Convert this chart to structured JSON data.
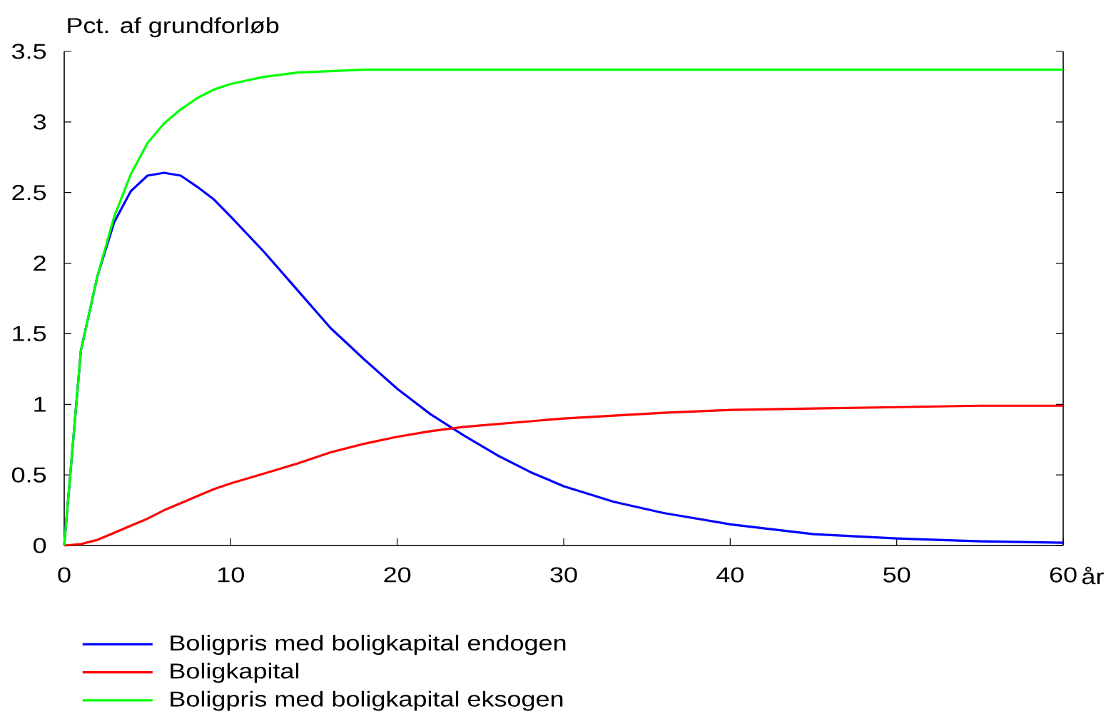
{
  "chart_data": {
    "type": "line",
    "ylabel": "Pct. af grundforløb",
    "xlabel": "år",
    "x": [
      0,
      1,
      2,
      3,
      4,
      5,
      6,
      7,
      8,
      9,
      10,
      12,
      14,
      16,
      18,
      20,
      22,
      24,
      26,
      28,
      30,
      33,
      36,
      40,
      45,
      50,
      55,
      60
    ],
    "series": [
      {
        "name": "Boligpris med boligkapital endogen",
        "color": "#0000ff",
        "values": [
          0,
          1.38,
          1.91,
          2.29,
          2.51,
          2.62,
          2.64,
          2.62,
          2.54,
          2.45,
          2.33,
          2.08,
          1.81,
          1.54,
          1.32,
          1.11,
          0.93,
          0.78,
          0.64,
          0.52,
          0.42,
          0.31,
          0.23,
          0.15,
          0.08,
          0.05,
          0.03,
          0.02
        ]
      },
      {
        "name": "Boligkapital",
        "color": "#ff0000",
        "values": [
          0,
          0.01,
          0.04,
          0.09,
          0.14,
          0.19,
          0.25,
          0.3,
          0.35,
          0.4,
          0.44,
          0.51,
          0.58,
          0.66,
          0.72,
          0.77,
          0.81,
          0.84,
          0.86,
          0.88,
          0.9,
          0.92,
          0.94,
          0.96,
          0.97,
          0.98,
          0.99,
          0.99
        ]
      },
      {
        "name": "Boligpris med boligkapital eksogen",
        "color": "#00ff00",
        "values": [
          0,
          1.38,
          1.91,
          2.33,
          2.63,
          2.85,
          2.99,
          3.09,
          3.17,
          3.23,
          3.27,
          3.32,
          3.35,
          3.36,
          3.37,
          3.37,
          3.37,
          3.37,
          3.37,
          3.37,
          3.37,
          3.37,
          3.37,
          3.37,
          3.37,
          3.37,
          3.37,
          3.37
        ]
      }
    ],
    "xlim": [
      0,
      60
    ],
    "ylim": [
      0,
      3.5
    ],
    "xticks": [
      0,
      10,
      20,
      30,
      40,
      50,
      60
    ],
    "yticks": [
      0,
      0.5,
      1,
      1.5,
      2,
      2.5,
      3,
      3.5
    ],
    "legend": "bottom",
    "grid": false,
    "marker": "none",
    "line_style": "solid"
  }
}
